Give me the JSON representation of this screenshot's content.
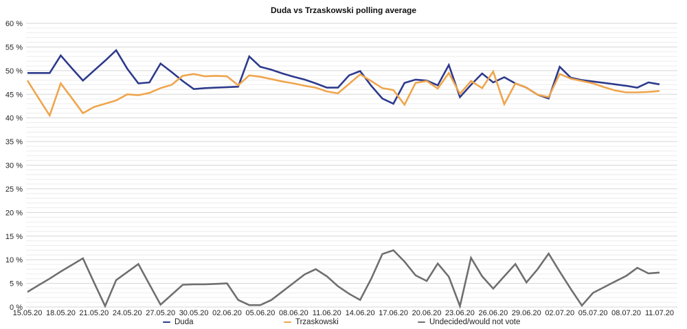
{
  "title": "Duda vs Trzaskowski polling average",
  "colors": {
    "duda": "#2d3a8c",
    "trzaskowski": "#efa54c",
    "undecided": "#6f6f6f",
    "grid_minor": "#ececec",
    "grid_major": "#d5d5d5",
    "axis_text": "#222222",
    "background": "#ffffff"
  },
  "legend": {
    "items": [
      {
        "label": "Duda",
        "color_key": "duda"
      },
      {
        "label": "Trzaskowski",
        "color_key": "trzaskowski"
      },
      {
        "label": "Undecided/would not vote",
        "color_key": "undecided"
      }
    ]
  },
  "chart_data": {
    "type": "line",
    "title": "Duda vs Trzaskowski polling average",
    "xlabel": "",
    "ylabel": "",
    "x_unit": "daily points from 15.05.20 to 11.07.20",
    "x_tick_labels": [
      "15.05.20",
      "18.05.20",
      "21.05.20",
      "24.05.20",
      "27.05.20",
      "30.05.20",
      "02.06.20",
      "05.06.20",
      "08.06.20",
      "11.06.20",
      "14.06.20",
      "17.06.20",
      "20.06.20",
      "23.06.20",
      "26.06.20",
      "29.06.20",
      "02.07.20",
      "05.07.20",
      "08.07.20",
      "11.07.20"
    ],
    "days_per_tick": 3,
    "y_tick_labels": [
      "60 %",
      "55 %",
      "50 %",
      "45 %",
      "40 %",
      "35 %",
      "30 %",
      "25 %",
      "20 %",
      "15 %",
      "10 %",
      "5 %",
      "0 %"
    ],
    "ylim": [
      0,
      60
    ],
    "y_major_step": 5,
    "y_minor_step": 1,
    "grid": "horizontal gridlines, minor every 1%, major every 5%",
    "legend_position": "bottom",
    "series": [
      {
        "name": "Duda",
        "color_key": "duda",
        "values": [
          49.5,
          49.5,
          49.5,
          53.2,
          50.5,
          47.9,
          50.0,
          52.1,
          54.3,
          50.4,
          47.3,
          47.5,
          51.5,
          49.7,
          47.8,
          46.1,
          46.3,
          46.4,
          46.5,
          46.6,
          53.0,
          50.8,
          50.2,
          49.4,
          48.7,
          48.1,
          47.3,
          46.4,
          46.4,
          49.0,
          49.9,
          46.8,
          44.1,
          43.0,
          47.4,
          48.1,
          47.9,
          46.9,
          51.2,
          44.4,
          47.0,
          49.4,
          47.5,
          48.6,
          47.3,
          46.4,
          44.9,
          44.1,
          50.8,
          48.5,
          48.0,
          47.7,
          47.4,
          47.1,
          46.8,
          46.4,
          47.5,
          47.1
        ]
      },
      {
        "name": "Trzaskowski",
        "color_key": "trzaskowski",
        "values": [
          47.9,
          44.2,
          40.5,
          47.3,
          44.2,
          41.0,
          42.3,
          43.0,
          43.7,
          45.0,
          44.8,
          45.3,
          46.3,
          47.0,
          48.9,
          49.3,
          48.8,
          48.9,
          48.8,
          46.9,
          49.0,
          48.7,
          48.2,
          47.7,
          47.3,
          46.8,
          46.4,
          45.6,
          45.2,
          47.2,
          49.2,
          47.8,
          46.3,
          45.9,
          42.8,
          47.4,
          47.8,
          46.2,
          49.5,
          45.1,
          47.8,
          46.3,
          49.8,
          42.9,
          47.3,
          46.4,
          44.9,
          44.4,
          49.3,
          48.3,
          47.8,
          47.3,
          46.5,
          45.8,
          45.4,
          45.4,
          45.5,
          45.7
        ]
      },
      {
        "name": "Undecided/would not vote",
        "color_key": "undecided",
        "values": [
          3.2,
          4.6,
          6.0,
          7.5,
          8.9,
          10.3,
          5.2,
          0.2,
          5.7,
          7.4,
          9.1,
          4.8,
          0.5,
          2.6,
          4.7,
          4.8,
          4.8,
          4.9,
          5.0,
          1.5,
          0.4,
          0.4,
          1.5,
          3.3,
          5.1,
          6.9,
          8.0,
          6.5,
          4.4,
          2.8,
          1.5,
          6.0,
          11.2,
          12.0,
          9.6,
          6.7,
          5.5,
          9.2,
          6.4,
          0.2,
          10.4,
          6.5,
          3.9,
          6.5,
          9.1,
          5.2,
          8.0,
          11.3,
          7.5,
          3.8,
          0.3,
          3.0,
          4.2,
          5.4,
          6.6,
          8.3,
          7.1,
          7.3
        ]
      }
    ]
  }
}
